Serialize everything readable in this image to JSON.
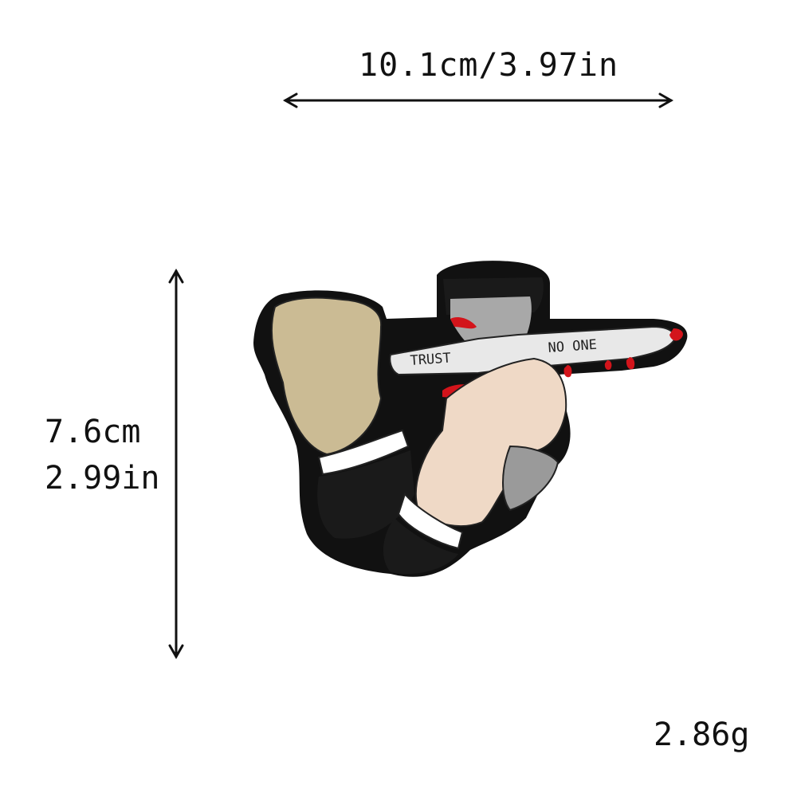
{
  "dimensions": {
    "width_label": "10.1cm/3.97in",
    "height_cm": "7.6cm",
    "height_in": "2.99in",
    "weight": "2.86g"
  },
  "patch": {
    "blade_text_left": "TRUST",
    "blade_text_right": "NO ONE"
  },
  "colors": {
    "background": "#ffffff",
    "border": "#111111",
    "skin_left": "#cbbb94",
    "skin_right": "#efd9c6",
    "blade": "#e8e8e8",
    "handle": "#9a9a9a",
    "blood": "#d3141b",
    "cuff": "#ffffff"
  }
}
